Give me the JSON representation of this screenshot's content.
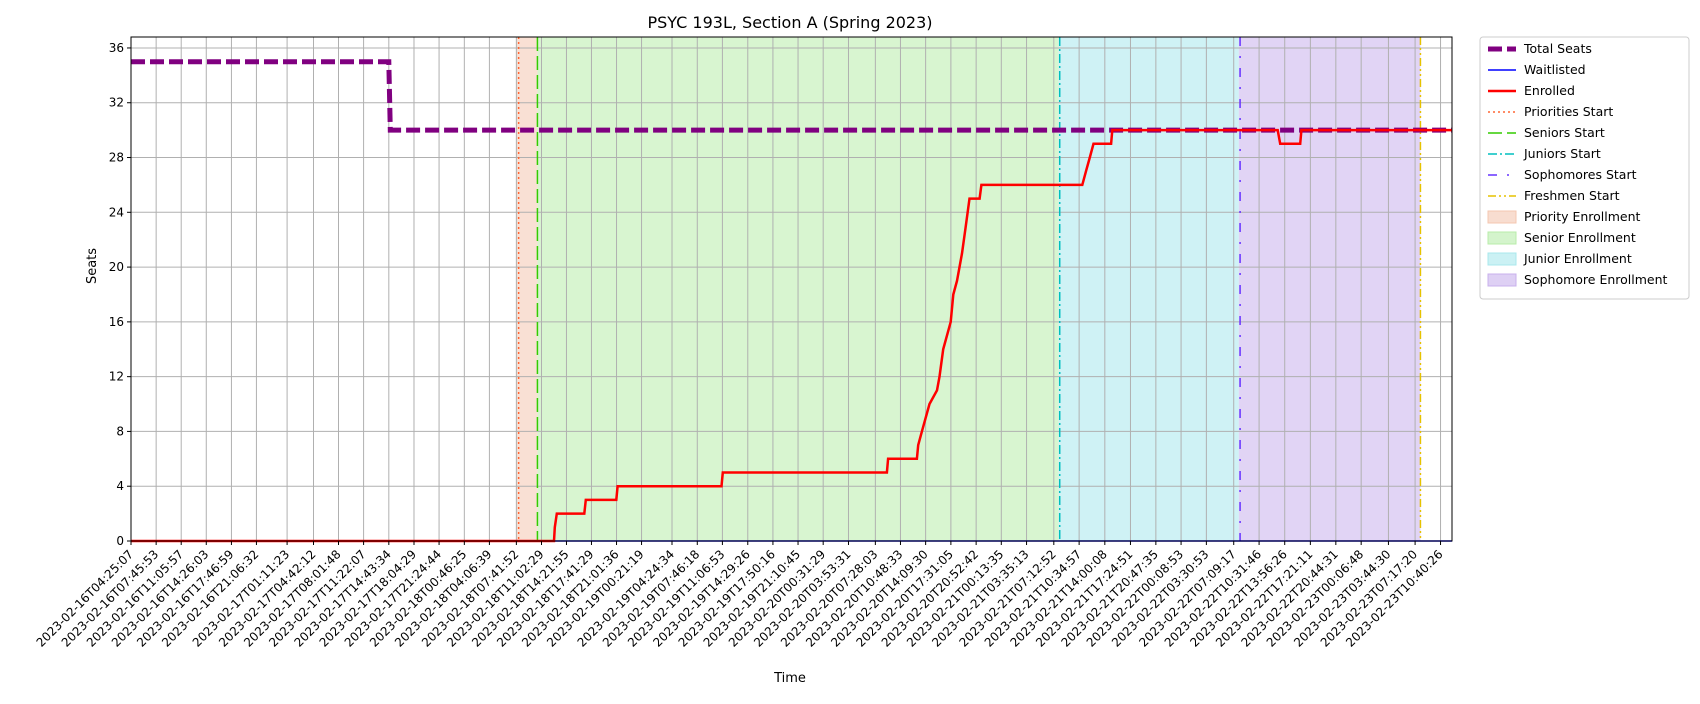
{
  "chart_data": {
    "type": "line",
    "title": "PSYC 193L, Section A (Spring 2023)",
    "xlabel": "Time",
    "ylabel": "Seats",
    "ylim": [
      0,
      36.8
    ],
    "yticks": [
      0,
      4,
      8,
      12,
      16,
      20,
      24,
      28,
      32,
      36
    ],
    "grid": true,
    "legend_placement": "outside-right",
    "xticks": [
      "2023-02-16T04:25:07",
      "2023-02-16T07:45:53",
      "2023-02-16T11:05:57",
      "2023-02-16T14:26:03",
      "2023-02-16T17:46:59",
      "2023-02-16T21:06:32",
      "2023-02-17T01:11:23",
      "2023-02-17T04:42:12",
      "2023-02-17T08:01:48",
      "2023-02-17T11:22:07",
      "2023-02-17T14:43:34",
      "2023-02-17T18:04:29",
      "2023-02-17T21:24:44",
      "2023-02-18T00:46:25",
      "2023-02-18T04:06:39",
      "2023-02-18T07:41:52",
      "2023-02-18T11:02:29",
      "2023-02-18T14:21:55",
      "2023-02-18T17:41:29",
      "2023-02-18T21:01:36",
      "2023-02-19T00:21:19",
      "2023-02-19T04:24:34",
      "2023-02-19T07:46:18",
      "2023-02-19T11:06:53",
      "2023-02-19T14:29:26",
      "2023-02-19T17:50:16",
      "2023-02-19T21:10:45",
      "2023-02-20T00:31:29",
      "2023-02-20T03:53:31",
      "2023-02-20T07:28:03",
      "2023-02-20T10:48:33",
      "2023-02-20T14:09:30",
      "2023-02-20T17:31:05",
      "2023-02-20T20:52:42",
      "2023-02-21T00:13:35",
      "2023-02-21T03:35:13",
      "2023-02-21T07:12:52",
      "2023-02-21T10:34:57",
      "2023-02-21T14:00:08",
      "2023-02-21T17:24:51",
      "2023-02-21T20:47:35",
      "2023-02-22T00:08:53",
      "2023-02-22T03:30:53",
      "2023-02-22T07:09:17",
      "2023-02-22T10:31:46",
      "2023-02-22T13:56:26",
      "2023-02-22T17:21:11",
      "2023-02-22T20:44:31",
      "2023-02-23T00:06:48",
      "2023-02-23T03:44:30",
      "2023-02-23T07:17:20",
      "2023-02-23T10:40:26"
    ],
    "x_range": [
      "2023-02-16T04:25:07",
      "2023-02-23T12:12:00"
    ],
    "series": [
      {
        "name": "Total Seats",
        "color": "#800080",
        "style": "dashed",
        "points": [
          [
            "2023-02-16T04:25:07",
            35
          ],
          [
            "2023-02-17T14:43:34",
            35
          ],
          [
            "2023-02-17T14:55:00",
            30
          ],
          [
            "2023-02-23T12:12:00",
            30
          ]
        ]
      },
      {
        "name": "Waitlisted",
        "color": "#0000ff",
        "style": "solid",
        "points": [
          [
            "2023-02-16T04:25:07",
            0
          ],
          [
            "2023-02-23T12:12:00",
            0
          ]
        ]
      },
      {
        "name": "Enrolled",
        "color": "#ff0000",
        "style": "solid",
        "points": [
          [
            "2023-02-16T04:25:07",
            0
          ],
          [
            "2023-02-18T12:42:00",
            0
          ],
          [
            "2023-02-18T12:49:00",
            1
          ],
          [
            "2023-02-18T13:05:00",
            2
          ],
          [
            "2023-02-18T16:44:00",
            2
          ],
          [
            "2023-02-18T16:56:00",
            3
          ],
          [
            "2023-02-18T21:00:00",
            3
          ],
          [
            "2023-02-18T21:10:00",
            4
          ],
          [
            "2023-02-19T11:00:00",
            4
          ],
          [
            "2023-02-19T11:10:00",
            5
          ],
          [
            "2023-02-20T09:00:00",
            5
          ],
          [
            "2023-02-20T09:10:00",
            6
          ],
          [
            "2023-02-20T13:00:00",
            6
          ],
          [
            "2023-02-20T13:10:00",
            7
          ],
          [
            "2023-02-20T13:40:00",
            8
          ],
          [
            "2023-02-20T14:40:00",
            10
          ],
          [
            "2023-02-20T15:40:00",
            11
          ],
          [
            "2023-02-20T16:00:00",
            12
          ],
          [
            "2023-02-20T16:30:00",
            14
          ],
          [
            "2023-02-20T17:30:00",
            16
          ],
          [
            "2023-02-20T17:50:00",
            18
          ],
          [
            "2023-02-20T18:20:00",
            19
          ],
          [
            "2023-02-20T18:40:00",
            20
          ],
          [
            "2023-02-20T19:00:00",
            21
          ],
          [
            "2023-02-20T19:30:00",
            23
          ],
          [
            "2023-02-20T20:00:00",
            25
          ],
          [
            "2023-02-20T21:20:00",
            25
          ],
          [
            "2023-02-20T21:35:00",
            26
          ],
          [
            "2023-02-21T11:00:00",
            26
          ],
          [
            "2023-02-21T11:30:00",
            27
          ],
          [
            "2023-02-21T12:00:00",
            28
          ],
          [
            "2023-02-21T12:30:00",
            29
          ],
          [
            "2023-02-21T14:50:00",
            29
          ],
          [
            "2023-02-21T15:00:00",
            30
          ],
          [
            "2023-02-22T13:00:00",
            30
          ],
          [
            "2023-02-22T13:20:00",
            29
          ],
          [
            "2023-02-22T16:00:00",
            29
          ],
          [
            "2023-02-22T16:10:00",
            30
          ],
          [
            "2023-02-23T12:12:00",
            30
          ]
        ]
      }
    ],
    "markers": [
      {
        "name": "Priorities Start",
        "x": "2023-02-18T08:00:00",
        "color": "#ff6633",
        "style": "dotted"
      },
      {
        "name": "Seniors Start",
        "x": "2023-02-18T10:30:00",
        "color": "#33cc00",
        "style": "dashed"
      },
      {
        "name": "Juniors Start",
        "x": "2023-02-21T08:00:00",
        "color": "#00bfbf",
        "style": "dashdot"
      },
      {
        "name": "Sophomores Start",
        "x": "2023-02-22T08:00:00",
        "color": "#6633ff",
        "style": "loosely-dashdot"
      },
      {
        "name": "Freshmen Start",
        "x": "2023-02-23T08:00:00",
        "color": "#e6c200",
        "style": "dashdotdot"
      }
    ],
    "regions": [
      {
        "name": "Priority Enrollment",
        "start": "2023-02-18T07:41:52",
        "end": "2023-02-18T10:30:00",
        "color": "#f4c7b0"
      },
      {
        "name": "Senior Enrollment",
        "start": "2023-02-18T10:30:00",
        "end": "2023-02-21T07:50:00",
        "color": "#b8ecaa"
      },
      {
        "name": "Junior Enrollment",
        "start": "2023-02-21T07:50:00",
        "end": "2023-02-22T07:50:00",
        "color": "#a8e8ec"
      },
      {
        "name": "Sophomore Enrollment",
        "start": "2023-02-22T07:50:00",
        "end": "2023-02-23T08:00:00",
        "color": "#c8b0ec"
      }
    ]
  }
}
